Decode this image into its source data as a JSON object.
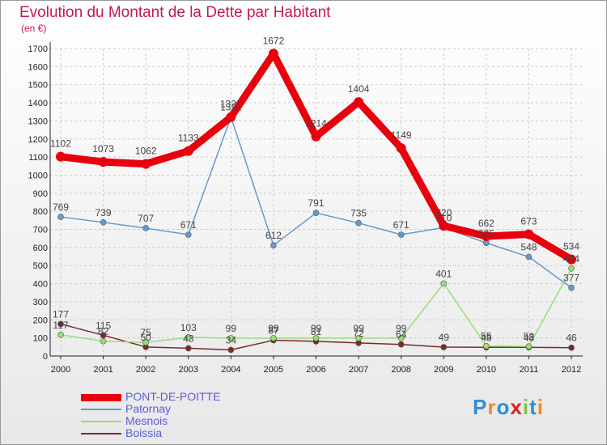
{
  "title": "Evolution du Montant de la Dette par Habitant",
  "subtitle": "(en €)",
  "logo": "Proxiti",
  "chart_data": {
    "type": "line",
    "title": "Evolution du Montant de la Dette par Habitant",
    "ylabel": "(en €)",
    "xlabel": "",
    "x": [
      "2000",
      "2001",
      "2002",
      "2003",
      "2004",
      "2005",
      "2006",
      "2007",
      "2008",
      "2009",
      "2010",
      "2011",
      "2012"
    ],
    "ylim": [
      0,
      1700
    ],
    "yticks": [
      0,
      100,
      200,
      300,
      400,
      500,
      600,
      700,
      800,
      900,
      1000,
      1100,
      1200,
      1300,
      1400,
      1500,
      1600,
      1700
    ],
    "series": [
      {
        "name": "PONT-DE-POITTE",
        "color": "#e8000d",
        "values": [
          1102,
          1073,
          1062,
          1133,
          1321,
          1672,
          1214,
          1404,
          1149,
          720,
          662,
          673,
          534
        ]
      },
      {
        "name": "Patornay",
        "color": "#6699cc",
        "values": [
          769,
          739,
          707,
          671,
          1321,
          612,
          791,
          735,
          671,
          710,
          625,
          548,
          377
        ]
      },
      {
        "name": "Mesnois",
        "color": "#99dd77",
        "values": [
          117,
          82,
          75,
          103,
          99,
          99,
          99,
          99,
          99,
          401,
          55,
          53,
          484
        ]
      },
      {
        "name": "Boissia",
        "color": "#7a2a2a",
        "values": [
          177,
          115,
          50,
          43,
          34,
          87,
          81,
          72,
          64,
          49,
          48,
          48,
          46
        ]
      }
    ]
  }
}
